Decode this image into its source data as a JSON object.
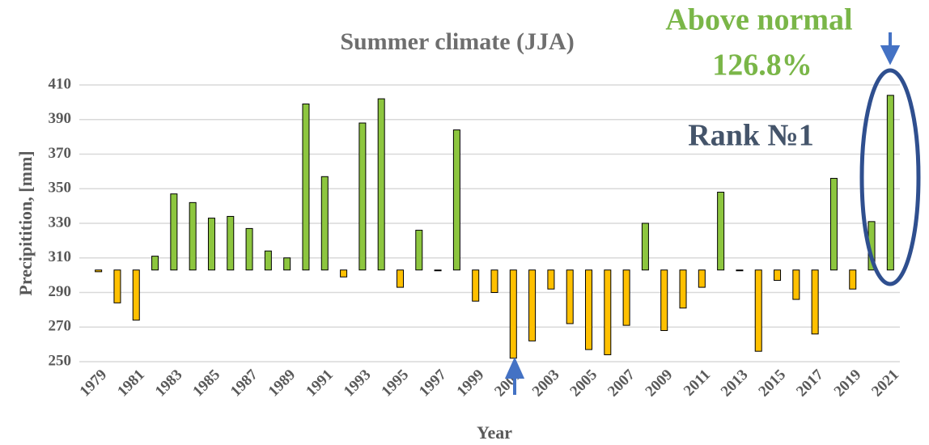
{
  "chart_data": {
    "type": "bar",
    "title": "Summer climate (JJA)",
    "y_label": "Precipitition, [mm]",
    "x_label": "Year",
    "annotations": [
      "Above normal",
      "126.8%",
      "Rank №1"
    ],
    "categories": [
      "1979",
      null,
      "1981",
      null,
      "1983",
      null,
      "1985",
      null,
      "1987",
      null,
      "1989",
      null,
      "1991",
      null,
      "1993",
      null,
      "1995",
      null,
      "1997",
      null,
      "1999",
      null,
      "2001",
      null,
      "2003",
      null,
      "2005",
      null,
      "2007",
      null,
      "2009",
      null,
      "2011",
      null,
      "2013",
      null,
      "2015",
      null,
      "2017",
      null,
      "2019",
      null,
      "2021"
    ],
    "values": [
      302,
      284,
      274,
      311,
      347,
      342,
      333,
      334,
      327,
      314,
      310,
      399,
      357,
      299,
      388,
      402,
      293,
      326,
      303,
      384,
      285,
      290,
      252,
      262,
      292,
      272,
      257,
      254,
      271,
      330,
      268,
      281,
      293,
      348,
      303,
      256,
      297,
      286,
      266,
      356,
      292,
      331,
      404
    ],
    "baseline": 303,
    "above_color": "#8dc63f",
    "below_color": "#ffc000",
    "ylim": [
      250,
      410
    ],
    "yticks": [
      250,
      270,
      290,
      310,
      330,
      350,
      370,
      390,
      410
    ],
    "grid": true
  }
}
